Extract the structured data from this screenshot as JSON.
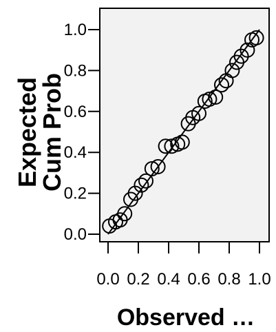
{
  "chart_data": {
    "type": "scatter",
    "title": "",
    "xlabel": "Observed …",
    "ylabel_lines": [
      "Expected",
      "Cum Prob"
    ],
    "xlim": [
      0,
      1
    ],
    "ylim": [
      0,
      1
    ],
    "xticks": [
      "0.0",
      "0.2",
      "0.4",
      "0.6",
      "0.8",
      "1.0"
    ],
    "yticks": [
      "0.0",
      "0.2",
      "0.4",
      "0.6",
      "0.8",
      "1.0"
    ],
    "reference_line": [
      [
        0,
        0
      ],
      [
        1,
        1
      ]
    ],
    "grid": false,
    "legend": "none",
    "plot_bg": "#f2f2f2",
    "marker_color": "#000000",
    "points": [
      {
        "x": 0.01,
        "y": 0.04
      },
      {
        "x": 0.05,
        "y": 0.06
      },
      {
        "x": 0.08,
        "y": 0.07
      },
      {
        "x": 0.11,
        "y": 0.1
      },
      {
        "x": 0.15,
        "y": 0.17
      },
      {
        "x": 0.18,
        "y": 0.2
      },
      {
        "x": 0.22,
        "y": 0.24
      },
      {
        "x": 0.25,
        "y": 0.26
      },
      {
        "x": 0.29,
        "y": 0.32
      },
      {
        "x": 0.33,
        "y": 0.33
      },
      {
        "x": 0.38,
        "y": 0.43
      },
      {
        "x": 0.42,
        "y": 0.43
      },
      {
        "x": 0.46,
        "y": 0.44
      },
      {
        "x": 0.49,
        "y": 0.45
      },
      {
        "x": 0.53,
        "y": 0.54
      },
      {
        "x": 0.56,
        "y": 0.57
      },
      {
        "x": 0.6,
        "y": 0.59
      },
      {
        "x": 0.64,
        "y": 0.65
      },
      {
        "x": 0.67,
        "y": 0.66
      },
      {
        "x": 0.71,
        "y": 0.67
      },
      {
        "x": 0.75,
        "y": 0.73
      },
      {
        "x": 0.78,
        "y": 0.75
      },
      {
        "x": 0.82,
        "y": 0.8
      },
      {
        "x": 0.85,
        "y": 0.84
      },
      {
        "x": 0.88,
        "y": 0.87
      },
      {
        "x": 0.92,
        "y": 0.9
      },
      {
        "x": 0.95,
        "y": 0.95
      },
      {
        "x": 0.98,
        "y": 0.96
      }
    ]
  }
}
